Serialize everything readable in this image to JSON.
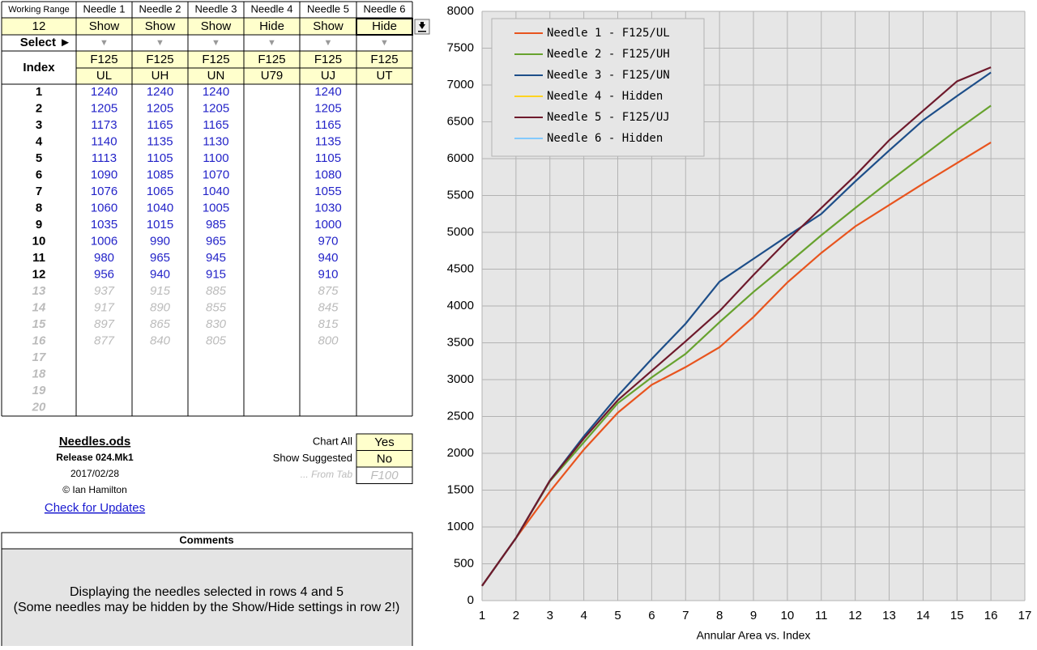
{
  "table": {
    "header": [
      "Working Range",
      "Needle 1",
      "Needle 2",
      "Needle 3",
      "Needle 4",
      "Needle 5",
      "Needle 6"
    ],
    "visibility": [
      "12",
      "Show",
      "Show",
      "Show",
      "Hide",
      "Show",
      "Hide"
    ],
    "select": [
      "Select ►",
      "▼",
      "▼",
      "▼",
      "▼",
      "▼",
      "▼"
    ],
    "index_label": "Index",
    "type_row": [
      "F125",
      "F125",
      "F125",
      "F125",
      "F125",
      "F125"
    ],
    "code_row": [
      "UL",
      "UH",
      "UN",
      "U79",
      "UJ",
      "UT"
    ],
    "rows": [
      {
        "index": 1,
        "cells": [
          1240,
          1240,
          1240,
          null,
          1240,
          null
        ]
      },
      {
        "index": 2,
        "cells": [
          1205,
          1205,
          1205,
          null,
          1205,
          null
        ]
      },
      {
        "index": 3,
        "cells": [
          1173,
          1165,
          1165,
          null,
          1165,
          null
        ]
      },
      {
        "index": 4,
        "cells": [
          1140,
          1135,
          1130,
          null,
          1135,
          null
        ]
      },
      {
        "index": 5,
        "cells": [
          1113,
          1105,
          1100,
          null,
          1105,
          null
        ]
      },
      {
        "index": 6,
        "cells": [
          1090,
          1085,
          1070,
          null,
          1080,
          null
        ]
      },
      {
        "index": 7,
        "cells": [
          1076,
          1065,
          1040,
          null,
          1055,
          null
        ]
      },
      {
        "index": 8,
        "cells": [
          1060,
          1040,
          1005,
          null,
          1030,
          null
        ]
      },
      {
        "index": 9,
        "cells": [
          1035,
          1015,
          985,
          null,
          1000,
          null
        ]
      },
      {
        "index": 10,
        "cells": [
          1006,
          990,
          965,
          null,
          970,
          null
        ]
      },
      {
        "index": 11,
        "cells": [
          980,
          965,
          945,
          null,
          940,
          null
        ]
      },
      {
        "index": 12,
        "cells": [
          956,
          940,
          915,
          null,
          910,
          null
        ]
      },
      {
        "index": 13,
        "cells": [
          937,
          915,
          885,
          null,
          875,
          null
        ]
      },
      {
        "index": 14,
        "cells": [
          917,
          890,
          855,
          null,
          845,
          null
        ]
      },
      {
        "index": 15,
        "cells": [
          897,
          865,
          830,
          null,
          815,
          null
        ]
      },
      {
        "index": 16,
        "cells": [
          877,
          840,
          805,
          null,
          800,
          null
        ]
      },
      {
        "index": 17,
        "cells": [
          null,
          null,
          null,
          null,
          null,
          null
        ]
      },
      {
        "index": 18,
        "cells": [
          null,
          null,
          null,
          null,
          null,
          null
        ]
      },
      {
        "index": 19,
        "cells": [
          null,
          null,
          null,
          null,
          null,
          null
        ]
      },
      {
        "index": 20,
        "cells": [
          null,
          null,
          null,
          null,
          null,
          null
        ]
      }
    ],
    "working_range": 12
  },
  "info": {
    "file": "Needles.ods",
    "release": "Release 024.Mk1",
    "date": "2017/02/28",
    "author": "© Ian Hamilton",
    "link": "Check for Updates"
  },
  "settings": [
    {
      "label": "Chart All",
      "value": "Yes"
    },
    {
      "label": "Show Suggested",
      "value": "No"
    },
    {
      "label": "... From Tab",
      "value": "F100"
    }
  ],
  "comments": {
    "title": "Comments",
    "lines": [
      "Displaying the needles selected in rows 4 and 5",
      "(Some needles may be hidden by the Show/Hide settings in row 2!)"
    ]
  },
  "chart_data": {
    "type": "line",
    "x_label": "Annular Area vs. Index",
    "x": [
      1,
      2,
      3,
      4,
      5,
      6,
      7,
      8,
      9,
      10,
      11,
      12,
      13,
      14,
      15,
      16
    ],
    "series": [
      {
        "name": "Needle 1 - F125/UL",
        "color": "#e8541e",
        "values": [
          200,
          850,
          1480,
          2050,
          2550,
          2930,
          3170,
          3440,
          3850,
          4320,
          4720,
          5080,
          5370,
          5660,
          5940,
          6220
        ]
      },
      {
        "name": "Needle 2 - F125/UH",
        "color": "#67a22e",
        "values": [
          200,
          850,
          1620,
          2150,
          2680,
          3030,
          3350,
          3780,
          4190,
          4570,
          4960,
          5330,
          5690,
          6040,
          6390,
          6720
        ]
      },
      {
        "name": "Needle 3 - F125/UN",
        "color": "#1d4e89",
        "values": [
          200,
          850,
          1630,
          2230,
          2780,
          3280,
          3760,
          4330,
          4640,
          4950,
          5250,
          5690,
          6110,
          6520,
          6850,
          7170
        ]
      },
      {
        "name": "Needle 4 - Hidden",
        "color": "#ffd320",
        "values": [
          null,
          null,
          null,
          null,
          null,
          null,
          null,
          null,
          null,
          null,
          null,
          null,
          null,
          null,
          null,
          null
        ]
      },
      {
        "name": "Needle 5 - F125/UJ",
        "color": "#6e1a2c",
        "values": [
          200,
          850,
          1630,
          2200,
          2720,
          3120,
          3520,
          3930,
          4420,
          4890,
          5330,
          5770,
          6250,
          6650,
          7050,
          7240
        ]
      },
      {
        "name": "Needle 6 - Hidden",
        "color": "#83caff",
        "values": [
          null,
          null,
          null,
          null,
          null,
          null,
          null,
          null,
          null,
          null,
          null,
          null,
          null,
          null,
          null,
          null
        ]
      }
    ],
    "xlim": [
      1,
      17
    ],
    "xticks": [
      1,
      2,
      3,
      4,
      5,
      6,
      7,
      8,
      9,
      10,
      11,
      12,
      13,
      14,
      15,
      16,
      17
    ],
    "ylim": [
      0,
      8000
    ],
    "yticks": [
      0,
      500,
      1000,
      1500,
      2000,
      2500,
      3000,
      3500,
      4000,
      4500,
      5000,
      5500,
      6000,
      6500,
      7000,
      7500,
      8000
    ],
    "grid": true,
    "legend": "top-left"
  }
}
